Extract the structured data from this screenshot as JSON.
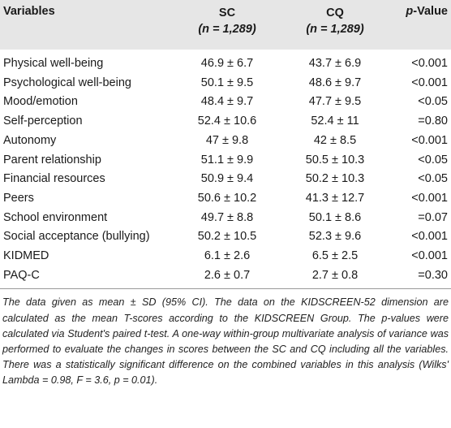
{
  "table": {
    "headers": {
      "variables": "Variables",
      "sc": "SC",
      "sc_n": "(n = 1,289)",
      "cq": "CQ",
      "cq_n": "(n = 1,289)",
      "pvalue_p": "p",
      "pvalue_rest": "-Value"
    },
    "rows": [
      {
        "variable": "Physical well-being",
        "sc": "46.9 ± 6.7",
        "cq": "43.7 ± 6.9",
        "p": "<0.001"
      },
      {
        "variable": "Psychological well-being",
        "sc": "50.1 ± 9.5",
        "cq": "48.6 ± 9.7",
        "p": "<0.001"
      },
      {
        "variable": "Mood/emotion",
        "sc": "48.4 ± 9.7",
        "cq": "47.7 ± 9.5",
        "p": "<0.05"
      },
      {
        "variable": "Self-perception",
        "sc": "52.4 ± 10.6",
        "cq": "52.4 ± 11",
        "p": "=0.80"
      },
      {
        "variable": "Autonomy",
        "sc": "47 ± 9.8",
        "cq": "42 ± 8.5",
        "p": "<0.001"
      },
      {
        "variable": "Parent relationship",
        "sc": "51.1 ± 9.9",
        "cq": "50.5 ± 10.3",
        "p": "<0.05"
      },
      {
        "variable": "Financial resources",
        "sc": "50.9 ± 9.4",
        "cq": "50.2 ± 10.3",
        "p": "<0.05"
      },
      {
        "variable": "Peers",
        "sc": "50.6 ± 10.2",
        "cq": "41.3 ± 12.7",
        "p": "<0.001"
      },
      {
        "variable": "School environment",
        "sc": "49.7 ± 8.8",
        "cq": "50.1 ± 8.6",
        "p": "=0.07"
      },
      {
        "variable": "Social acceptance (bullying)",
        "sc": "50.2 ± 10.5",
        "cq": "52.3 ± 9.6",
        "p": "<0.001"
      },
      {
        "variable": "KIDMED",
        "sc": "6.1 ± 2.6",
        "cq": "6.5 ± 2.5",
        "p": "<0.001"
      },
      {
        "variable": "PAQ-C",
        "sc": "2.6 ± 0.7",
        "cq": "2.7 ± 0.8",
        "p": "=0.30"
      }
    ]
  },
  "footnote": "The data given as mean ± SD (95% CI). The data on the KIDSCREEN-52 dimension are calculated as the mean T-scores according to the KIDSCREEN Group. The p-values were calculated via Student's paired t-test. A one-way within-group multivariate analysis of variance was performed to evaluate the changes in scores between the SC and CQ including all the variables. There was a statistically significant difference on the combined variables in this analysis (Wilks' Lambda = 0.98, F = 3.6, p = 0.01)."
}
